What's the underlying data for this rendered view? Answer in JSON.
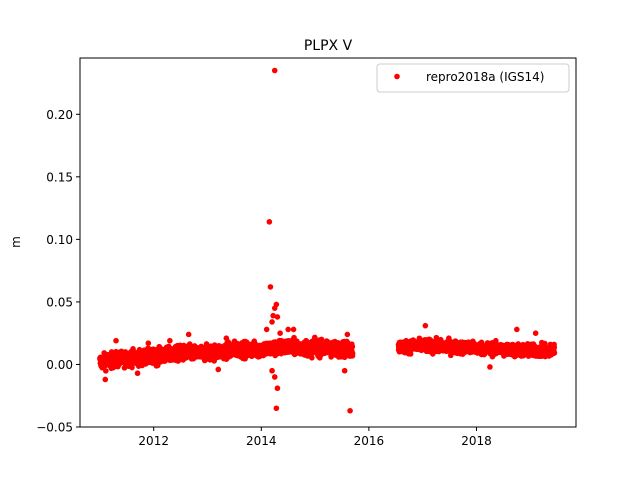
{
  "chart_data": {
    "type": "scatter",
    "title": "PLPX V",
    "xlabel": "",
    "ylabel": "m",
    "xlim": [
      2010.63,
      2019.85
    ],
    "ylim": [
      -0.05,
      0.245
    ],
    "xticks": [
      2012,
      2014,
      2016,
      2018
    ],
    "xtick_labels": [
      "2012",
      "2014",
      "2016",
      "2018"
    ],
    "yticks": [
      -0.05,
      0.0,
      0.05,
      0.1,
      0.15,
      0.2
    ],
    "ytick_labels": [
      "−0.05",
      "0.00",
      "0.05",
      "0.10",
      "0.15",
      "0.20"
    ],
    "grid": false,
    "legend_position": "top-right",
    "series": [
      {
        "name": "repro2018a (IGS14)",
        "color": "#ff0000",
        "marker": "circle",
        "segments": [
          {
            "x_start": 2011.0,
            "x_end": 2015.7,
            "trend": [
              [
                2011.0,
                0.002
              ],
              [
                2011.5,
                0.005
              ],
              [
                2012.0,
                0.006
              ],
              [
                2012.5,
                0.009
              ],
              [
                2013.0,
                0.009
              ],
              [
                2013.5,
                0.012
              ],
              [
                2014.0,
                0.012
              ],
              [
                2014.5,
                0.014
              ],
              [
                2015.0,
                0.013
              ],
              [
                2015.7,
                0.012
              ]
            ],
            "scatter_amplitude": 0.006
          },
          {
            "x_start": 2016.55,
            "x_end": 2019.45,
            "trend": [
              [
                2016.55,
                0.014
              ],
              [
                2017.0,
                0.015
              ],
              [
                2017.5,
                0.014
              ],
              [
                2018.0,
                0.013
              ],
              [
                2018.5,
                0.012
              ],
              [
                2019.0,
                0.011
              ],
              [
                2019.45,
                0.011
              ]
            ],
            "scatter_amplitude": 0.005
          }
        ],
        "outliers": [
          {
            "x": 2014.25,
            "y": 0.235
          },
          {
            "x": 2014.15,
            "y": 0.114
          },
          {
            "x": 2014.17,
            "y": 0.062
          },
          {
            "x": 2014.25,
            "y": 0.045
          },
          {
            "x": 2014.28,
            "y": 0.048
          },
          {
            "x": 2014.22,
            "y": 0.039
          },
          {
            "x": 2014.3,
            "y": 0.038
          },
          {
            "x": 2014.2,
            "y": 0.034
          },
          {
            "x": 2014.1,
            "y": 0.028
          },
          {
            "x": 2014.35,
            "y": 0.025
          },
          {
            "x": 2014.5,
            "y": 0.028
          },
          {
            "x": 2014.6,
            "y": 0.028
          },
          {
            "x": 2014.3,
            "y": -0.019
          },
          {
            "x": 2014.28,
            "y": -0.035
          },
          {
            "x": 2014.2,
            "y": -0.005
          },
          {
            "x": 2014.25,
            "y": -0.01
          },
          {
            "x": 2011.1,
            "y": -0.012
          },
          {
            "x": 2011.3,
            "y": 0.019
          },
          {
            "x": 2011.7,
            "y": -0.007
          },
          {
            "x": 2011.9,
            "y": 0.017
          },
          {
            "x": 2012.3,
            "y": 0.019
          },
          {
            "x": 2012.65,
            "y": 0.024
          },
          {
            "x": 2013.2,
            "y": -0.004
          },
          {
            "x": 2013.35,
            "y": 0.021
          },
          {
            "x": 2015.55,
            "y": -0.005
          },
          {
            "x": 2015.65,
            "y": -0.037
          },
          {
            "x": 2015.6,
            "y": 0.024
          },
          {
            "x": 2017.05,
            "y": 0.031
          },
          {
            "x": 2018.25,
            "y": -0.002
          },
          {
            "x": 2018.75,
            "y": 0.028
          },
          {
            "x": 2019.1,
            "y": 0.025
          }
        ]
      }
    ]
  }
}
